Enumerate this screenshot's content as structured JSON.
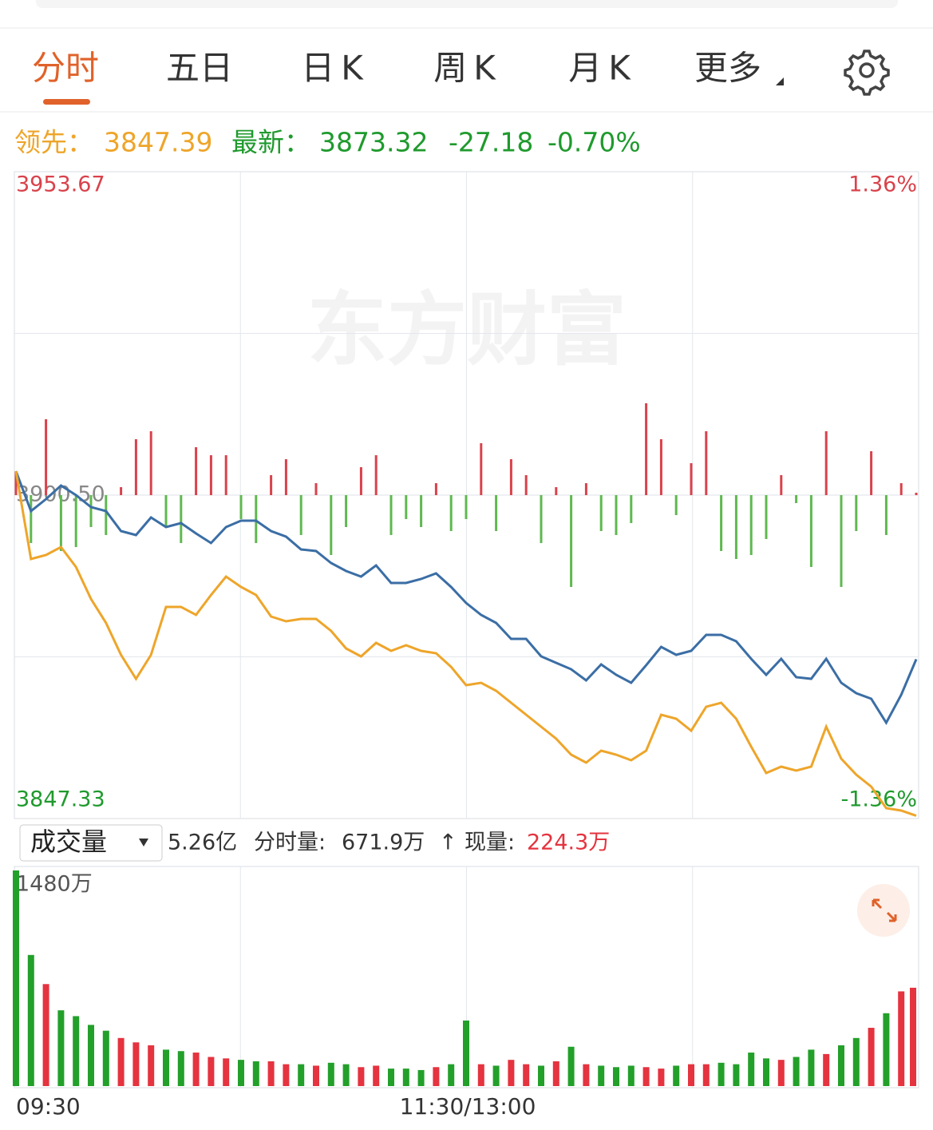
{
  "tabs": [
    "分时",
    "五日",
    "日K",
    "周K",
    "月K",
    "更多"
  ],
  "info": {
    "lead_label": "领先：",
    "lead_value": "3847.39",
    "last_label": "最新：",
    "last_value": "3873.32",
    "change": "-27.18",
    "change_pct": "-0.70%"
  },
  "watermark": "东方财富",
  "volume_bar": {
    "selector": "成交量",
    "total": "5.26亿",
    "period_label": "分时量:",
    "period_value": "671.9万",
    "arrow": "↑",
    "now_label": "现量:",
    "now_value": "224.3万"
  },
  "chart_data": [
    {
      "type": "line",
      "x": [
        0,
        4,
        8,
        12,
        16,
        20,
        24,
        28,
        32,
        36,
        40,
        44,
        48,
        52,
        56,
        60,
        64,
        68,
        72,
        76,
        80,
        84,
        88,
        92,
        96,
        100,
        104,
        108,
        112,
        116,
        120,
        124,
        128,
        132,
        136,
        140,
        144,
        148,
        152,
        156,
        160,
        164,
        168,
        172,
        176,
        180,
        184,
        188,
        192,
        196,
        200,
        204,
        208,
        212,
        216,
        220,
        224,
        228,
        232,
        236,
        240
      ],
      "xlim": [
        0,
        240
      ],
      "xticks": [
        {
          "value": 0,
          "label": "09:30"
        },
        {
          "value": 120,
          "label": "11:30/13:00"
        }
      ],
      "ylim": [
        3847.33,
        3953.67
      ],
      "yticks": [
        {
          "value": 3847.33,
          "label": "3847.33"
        },
        {
          "value": 3900.5,
          "label": "3900.50"
        },
        {
          "value": 3953.67,
          "label": "3953.67"
        }
      ],
      "y2lim": [
        -1.36,
        1.36
      ],
      "y2ticks": [
        {
          "value": -1.36,
          "label": "-1.36%"
        },
        {
          "value": 1.36,
          "label": "1.36%"
        }
      ],
      "grid": true,
      "series": [
        {
          "color": "#3b6ea5",
          "values": [
            3904.47,
            3897.85,
            3899.84,
            3902.09,
            3900.5,
            3898.52,
            3897.85,
            3894.55,
            3893.89,
            3896.8,
            3895.21,
            3895.87,
            3894.15,
            3892.56,
            3895.21,
            3896.27,
            3896.27,
            3894.55,
            3893.62,
            3891.51,
            3891.24,
            3889.26,
            3887.94,
            3887.01,
            3888.86,
            3885.95,
            3885.95,
            3886.61,
            3887.54,
            3885.29,
            3882.64,
            3880.66,
            3879.34,
            3876.69,
            3876.69,
            3873.79,
            3872.73,
            3871.67,
            3869.82,
            3872.46,
            3870.74,
            3869.42,
            3872.33,
            3875.37,
            3874.05,
            3874.71,
            3877.35,
            3877.35,
            3876.3,
            3873.39,
            3870.74,
            3873.39,
            3870.34,
            3870.08,
            3873.39,
            3869.42,
            3867.7,
            3866.77,
            3862.81,
            3867.43,
            3873.32
          ]
        },
        {
          "color": "#eea52a",
          "values": [
            3904.47,
            3889.92,
            3890.58,
            3891.9,
            3888.6,
            3883.31,
            3879.34,
            3874.05,
            3870.08,
            3874.05,
            3881.98,
            3881.98,
            3880.66,
            3883.97,
            3887.01,
            3885.29,
            3883.97,
            3880.4,
            3879.6,
            3880.0,
            3880.0,
            3878.02,
            3875.11,
            3873.78,
            3876.03,
            3874.71,
            3875.63,
            3874.71,
            3874.31,
            3872.06,
            3869.02,
            3869.42,
            3868.1,
            3866.11,
            3864.13,
            3862.14,
            3860.16,
            3857.52,
            3856.19,
            3858.18,
            3857.52,
            3856.59,
            3858.18,
            3864.13,
            3863.47,
            3861.48,
            3865.45,
            3866.11,
            3863.47,
            3858.84,
            3854.47,
            3855.53,
            3854.87,
            3855.53,
            3862.14,
            3856.85,
            3854.21,
            3852.23,
            3848.65,
            3848.26,
            3847.39
          ]
        }
      ],
      "bars": {
        "up_color": "#d9424b",
        "down_color": "#5fb84f",
        "values": [
          3.97,
          -7.94,
          12.57,
          -9.26,
          -8.6,
          -5.29,
          -6.61,
          1.32,
          9.26,
          10.58,
          -5.29,
          -7.94,
          7.94,
          6.61,
          6.61,
          -3.97,
          -7.94,
          3.31,
          5.95,
          -6.61,
          1.98,
          -9.92,
          -5.29,
          4.63,
          6.61,
          -6.61,
          -3.97,
          -5.29,
          1.98,
          -5.95,
          -3.97,
          8.6,
          -5.95,
          5.95,
          3.31,
          -7.94,
          1.32,
          -15.21,
          1.98,
          -5.95,
          -6.61,
          -4.63,
          15.21,
          9.26,
          -3.31,
          5.29,
          10.58,
          -9.26,
          -10.58,
          -9.92,
          -7.27,
          3.31,
          -1.32,
          -11.9,
          10.58,
          -15.21,
          -5.95,
          7.27,
          -6.61,
          1.98,
          0.4
        ]
      }
    },
    {
      "type": "bar",
      "x": [
        0,
        4,
        8,
        12,
        16,
        20,
        24,
        28,
        32,
        36,
        40,
        44,
        48,
        52,
        56,
        60,
        64,
        68,
        72,
        76,
        80,
        84,
        88,
        92,
        96,
        100,
        104,
        108,
        112,
        116,
        120,
        124,
        128,
        132,
        136,
        140,
        144,
        148,
        152,
        156,
        160,
        164,
        168,
        172,
        176,
        180,
        184,
        188,
        192,
        196,
        200,
        204,
        208,
        212,
        216,
        220,
        224,
        228,
        232,
        236,
        240
      ],
      "xlim": [
        0,
        240
      ],
      "ylim": [
        0,
        1480
      ],
      "yticks": [
        {
          "value": 1480,
          "label": "1480万"
        }
      ],
      "values": [
        1480,
        900,
        700,
        520,
        480,
        420,
        380,
        330,
        300,
        280,
        250,
        240,
        230,
        200,
        190,
        180,
        170,
        170,
        150,
        150,
        140,
        160,
        150,
        130,
        140,
        120,
        120,
        110,
        130,
        150,
        450,
        150,
        140,
        180,
        150,
        140,
        170,
        270,
        150,
        140,
        130,
        140,
        130,
        120,
        140,
        150,
        150,
        160,
        150,
        230,
        190,
        180,
        200,
        250,
        220,
        280,
        330,
        400,
        500,
        650,
        675
      ],
      "colors": [
        "#22a02a",
        "#22a02a",
        "#e5333f",
        "#22a02a",
        "#22a02a",
        "#22a02a",
        "#22a02a",
        "#e5333f",
        "#e5333f",
        "#e5333f",
        "#22a02a",
        "#22a02a",
        "#e5333f",
        "#e5333f",
        "#e5333f",
        "#22a02a",
        "#22a02a",
        "#e5333f",
        "#e5333f",
        "#22a02a",
        "#e5333f",
        "#22a02a",
        "#22a02a",
        "#e5333f",
        "#e5333f",
        "#22a02a",
        "#22a02a",
        "#22a02a",
        "#e5333f",
        "#22a02a",
        "#22a02a",
        "#e5333f",
        "#22a02a",
        "#e5333f",
        "#e5333f",
        "#22a02a",
        "#e5333f",
        "#22a02a",
        "#e5333f",
        "#22a02a",
        "#22a02a",
        "#22a02a",
        "#e5333f",
        "#e5333f",
        "#22a02a",
        "#e5333f",
        "#e5333f",
        "#22a02a",
        "#22a02a",
        "#22a02a",
        "#22a02a",
        "#e5333f",
        "#22a02a",
        "#22a02a",
        "#e5333f",
        "#22a02a",
        "#22a02a",
        "#e5333f",
        "#22a02a",
        "#e5333f",
        "#e5333f"
      ]
    }
  ]
}
